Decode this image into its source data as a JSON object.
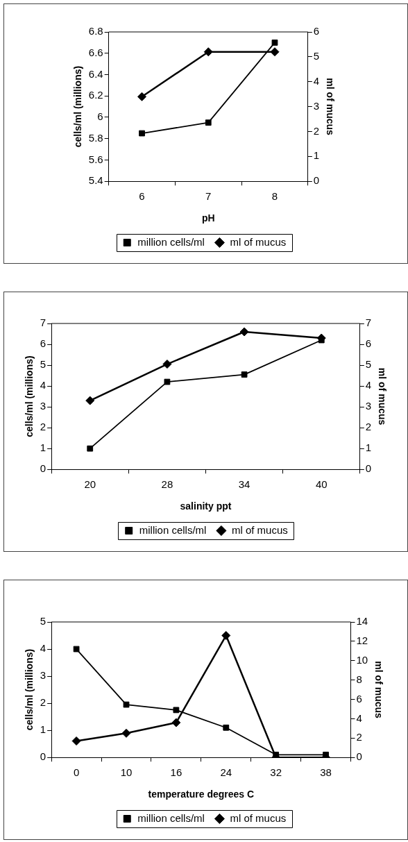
{
  "chart_data": [
    {
      "type": "line",
      "xlabel": "pH",
      "ylabel": "cells/ml (millions)",
      "y2label": "ml of mucus",
      "categories": [
        "6",
        "7",
        "8"
      ],
      "series": [
        {
          "name": "million cells/ml",
          "color": "#000000",
          "marker": "square",
          "values": [
            5.85,
            5.95,
            6.7
          ]
        },
        {
          "name": "ml of mucus",
          "color": "#000000",
          "marker": "diamond",
          "axis": "y2",
          "values": [
            3.4,
            5.2,
            5.2
          ]
        }
      ],
      "ylim": [
        5.4,
        6.8
      ],
      "yticks": [
        5.4,
        5.6,
        5.8,
        6,
        6.2,
        6.4,
        6.6,
        6.8
      ],
      "y2lim": [
        0,
        6
      ],
      "y2ticks": [
        0,
        1,
        2,
        3,
        4,
        5,
        6
      ],
      "legend": "bottom"
    },
    {
      "type": "line",
      "xlabel": "salinity ppt",
      "ylabel": "cells/ml (millions)",
      "y2label": "ml of mucus",
      "categories": [
        "20",
        "28",
        "34",
        "40"
      ],
      "series": [
        {
          "name": "million cells/ml",
          "color": "#000000",
          "marker": "square",
          "values": [
            1.0,
            4.2,
            4.55,
            6.2
          ]
        },
        {
          "name": "ml of mucus",
          "color": "#000000",
          "marker": "diamond",
          "axis": "y2",
          "values": [
            3.3,
            5.05,
            6.6,
            6.3
          ]
        }
      ],
      "ylim": [
        0,
        7
      ],
      "yticks": [
        0,
        1,
        2,
        3,
        4,
        5,
        6,
        7
      ],
      "y2lim": [
        0,
        7
      ],
      "y2ticks": [
        0,
        1,
        2,
        3,
        4,
        5,
        6,
        7
      ],
      "legend": "bottom"
    },
    {
      "type": "line",
      "xlabel": "temperature degrees C",
      "ylabel": "cells/ml (millions)",
      "y2label": "ml of mucus",
      "categories": [
        "0",
        "10",
        "16",
        "24",
        "32",
        "38"
      ],
      "series": [
        {
          "name": "million cells/ml",
          "color": "#000000",
          "marker": "square",
          "values": [
            4.0,
            1.95,
            1.75,
            1.1,
            0.1,
            0.1
          ]
        },
        {
          "name": "ml of mucus",
          "color": "#000000",
          "marker": "diamond",
          "axis": "y2",
          "values": [
            1.7,
            2.5,
            3.6,
            12.6,
            0,
            0
          ]
        }
      ],
      "ylim": [
        0,
        5
      ],
      "yticks": [
        0,
        1,
        2,
        3,
        4,
        5
      ],
      "y2lim": [
        0,
        14
      ],
      "y2ticks": [
        0,
        2,
        4,
        6,
        8,
        10,
        12,
        14
      ],
      "legend": "bottom"
    }
  ]
}
